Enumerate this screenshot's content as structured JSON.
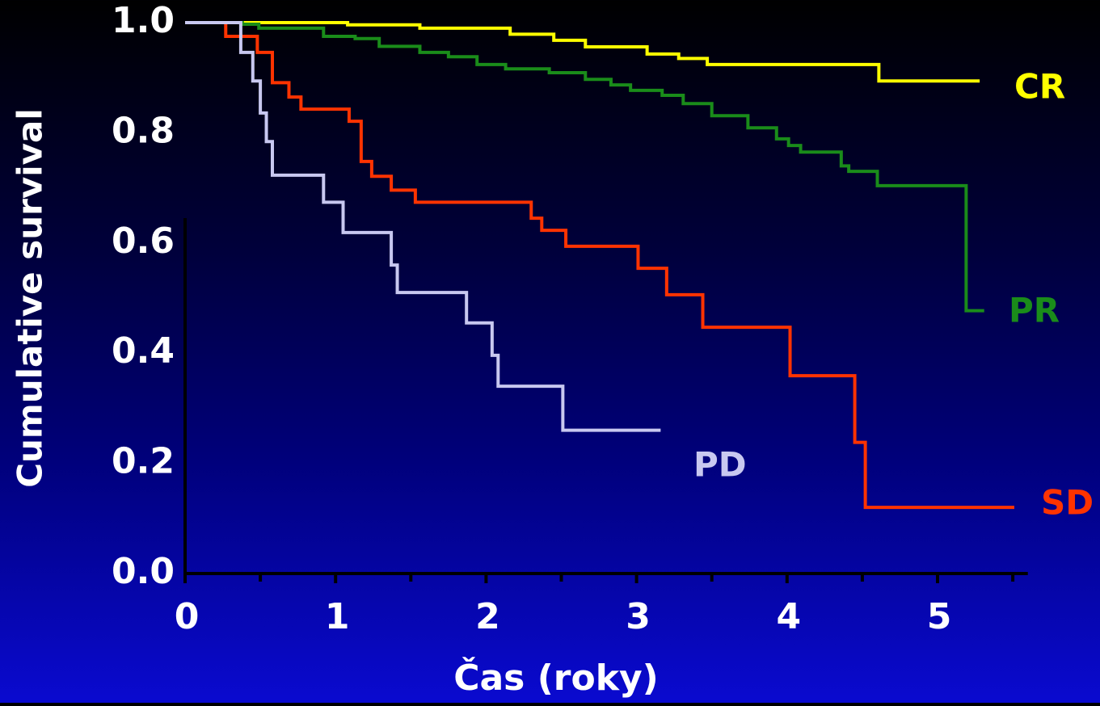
{
  "chart_data": {
    "type": "step",
    "x_label": "Čas (roky)",
    "y_label": "Cumulative survival",
    "xlim": [
      0,
      5.6
    ],
    "ylim": [
      0,
      1
    ],
    "xticks": [
      0,
      1,
      2,
      3,
      4,
      5
    ],
    "xminorticks": [
      0.5,
      1.5,
      2.5,
      3.5,
      4.5,
      5.5
    ],
    "yticks": [
      {
        "value": 0,
        "label": "0.0"
      },
      {
        "value": 0.2,
        "label": "0.2"
      },
      {
        "value": 0.4,
        "label": "0.4"
      },
      {
        "value": 0.6,
        "label": "0.6"
      },
      {
        "value": 0.8,
        "label": "0.8"
      },
      {
        "value": 1,
        "label": "1.0"
      }
    ],
    "series": [
      {
        "name": "CR",
        "color": "#ffff00",
        "x": [
          0,
          1.08,
          1.56,
          2.16,
          2.45,
          2.66,
          3.07,
          3.28,
          3.47,
          4.61,
          5.28
        ],
        "values": [
          1,
          0.996,
          0.99,
          0.979,
          0.968,
          0.956,
          0.943,
          0.935,
          0.924,
          0.894,
          0.894
        ]
      },
      {
        "name": "PR",
        "color": "#1a8c1a",
        "x": [
          0,
          0.38,
          0.49,
          0.92,
          1.13,
          1.29,
          1.56,
          1.75,
          1.94,
          2.13,
          2.42,
          2.66,
          2.83,
          2.96,
          3.17,
          3.31,
          3.5,
          3.74,
          3.93,
          4.01,
          4.09,
          4.36,
          4.41,
          4.6,
          5.19,
          5.31
        ],
        "values": [
          1,
          0.997,
          0.99,
          0.975,
          0.971,
          0.957,
          0.946,
          0.938,
          0.924,
          0.916,
          0.909,
          0.897,
          0.887,
          0.877,
          0.868,
          0.853,
          0.831,
          0.809,
          0.789,
          0.777,
          0.765,
          0.74,
          0.73,
          0.704,
          0.477,
          0.477
        ]
      },
      {
        "name": "SD",
        "color": "#ff3300",
        "x": [
          0,
          0.27,
          0.48,
          0.58,
          0.69,
          0.77,
          1.09,
          1.17,
          1.24,
          1.37,
          1.53,
          2.3,
          2.37,
          2.53,
          3.01,
          3.2,
          3.44,
          4.02,
          4.45,
          4.52,
          5.51
        ],
        "values": [
          1,
          0.975,
          0.946,
          0.891,
          0.865,
          0.843,
          0.821,
          0.748,
          0.721,
          0.696,
          0.674,
          0.645,
          0.623,
          0.594,
          0.554,
          0.506,
          0.447,
          0.359,
          0.238,
          0.12,
          0.12
        ]
      },
      {
        "name": "PD",
        "color": "#c8c8f0",
        "x": [
          0,
          0.37,
          0.45,
          0.5,
          0.54,
          0.58,
          0.92,
          1.05,
          1.37,
          1.41,
          1.87,
          2.04,
          2.08,
          2.51,
          3.16
        ],
        "values": [
          1,
          0.946,
          0.894,
          0.836,
          0.784,
          0.723,
          0.674,
          0.619,
          0.56,
          0.51,
          0.455,
          0.396,
          0.34,
          0.26,
          0.26
        ]
      }
    ]
  }
}
